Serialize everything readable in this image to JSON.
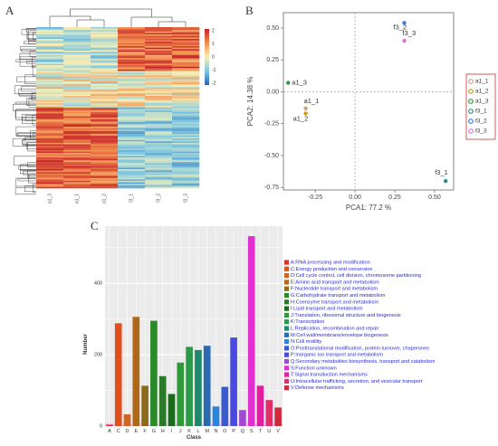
{
  "panel_labels": {
    "a": "A",
    "b": "B",
    "c": "C"
  },
  "heatmap": {
    "column_labels": [
      "a1_3",
      "a1_1",
      "a1_2",
      "f3_1",
      "f3_2",
      "f3_3"
    ],
    "color_key": {
      "ticks": [
        "2",
        "1",
        "0",
        "-1",
        "-2"
      ],
      "colors": [
        "#c7262c",
        "#f38d4c",
        "#f7f1b7",
        "#7ec7e3",
        "#2a62b5"
      ]
    }
  },
  "chart_data": [
    {
      "type": "scatter",
      "xlabel": "PCA1: 77.2 %",
      "ylabel": "PCA2: 14.38 %",
      "xlim": [
        -0.45,
        0.62
      ],
      "ylim": [
        -0.77,
        0.62
      ],
      "xticks": [
        "-0.25",
        "0.00",
        "0.25",
        "0.50"
      ],
      "yticks": [
        "0.50",
        "0.25",
        "0.00",
        "-0.25",
        "-0.50",
        "-0.75"
      ],
      "reference_lines": {
        "x": 0,
        "y": 0
      },
      "legend_position": "right",
      "series": [
        {
          "name": "a1_1",
          "x": [
            -0.31
          ],
          "y": [
            -0.13
          ],
          "color": "#c9a57a"
        },
        {
          "name": "a1_2",
          "x": [
            -0.31
          ],
          "y": [
            -0.17
          ],
          "color": "#c69b1e"
        },
        {
          "name": "a1_3",
          "x": [
            -0.42
          ],
          "y": [
            0.07
          ],
          "color": "#2d9a3c"
        },
        {
          "name": "f3_1",
          "x": [
            0.57
          ],
          "y": [
            -0.7
          ],
          "color": "#2b8c8c"
        },
        {
          "name": "f3_2",
          "x": [
            0.31
          ],
          "y": [
            0.54
          ],
          "color": "#3a7be0"
        },
        {
          "name": "f3_3",
          "x": [
            0.31
          ],
          "y": [
            0.4
          ],
          "color": "#e070e0"
        }
      ]
    },
    {
      "type": "bar",
      "xlabel": "Class",
      "ylabel": "Number",
      "ylim": [
        0,
        560
      ],
      "yticks": [
        0,
        200,
        400
      ],
      "categories": [
        "A",
        "C",
        "D",
        "E",
        "F",
        "G",
        "H",
        "I",
        "J",
        "K",
        "L",
        "M",
        "N",
        "O",
        "P",
        "Q",
        "S",
        "T",
        "U",
        "V"
      ],
      "values": [
        4,
        288,
        33,
        306,
        113,
        295,
        140,
        90,
        178,
        222,
        213,
        225,
        55,
        110,
        248,
        45,
        532,
        113,
        73,
        52
      ],
      "colors": [
        "#e0302a",
        "#e0501c",
        "#d06420",
        "#b06818",
        "#8c6a1c",
        "#2a8a2a",
        "#2a7a2a",
        "#1c6a1c",
        "#309a3a",
        "#2a9a4a",
        "#1c8a6a",
        "#2a6ab0",
        "#2a84e0",
        "#3a5ad0",
        "#4a4ae0",
        "#a04ad0",
        "#e030d0",
        "#e020a0",
        "#e0306a",
        "#d02a3a"
      ],
      "legend": [
        "A:RNA processing and modification",
        "C:Energy production and conversion",
        "D:Cell cycle control, cell division, chromosome partitioning",
        "E:Amino acid transport and metabolism",
        "F:Nucleotide transport and metabolism",
        "G:Carbohydrate transport and metabolism",
        "H:Coenzyme transport and metabolism",
        "I:Lipid transport and metabolism",
        "J:Translation, ribosomal structure and biogenesis",
        "K:Transcription",
        "L:Replication, recombination and repair",
        "M:Cell wall/membrane/envelope biogenesis",
        "N:Cell motility",
        "O:Posttranslational modification, protein turnover, chaperones",
        "P:Inorganic ion transport and metabolism",
        "Q:Secondary metabolites biosynthesis, transport and catabolism",
        "S:Function unknown",
        "T:Signal transduction mechanisms",
        "U:Intracellular trafficking, secretion, and vesicular transport",
        "V:Defense mechanisms"
      ]
    }
  ]
}
